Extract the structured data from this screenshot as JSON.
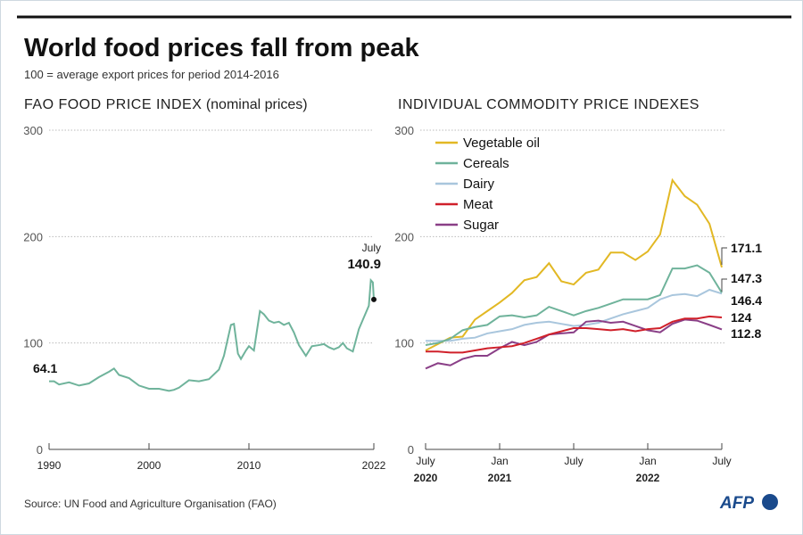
{
  "title": "World food prices fall from peak",
  "subtitle": "100 = average export prices for period 2014-2016",
  "source": "Source: UN Food and Agriculture Organisation (FAO)",
  "logo": "AFP",
  "chart_data": [
    {
      "type": "line",
      "title": "FAO FOOD PRICE INDEX",
      "title_note": "(nominal prices)",
      "ylim": [
        0,
        300
      ],
      "yticks": [
        "0",
        "100",
        "200",
        "300"
      ],
      "xlim": [
        1990,
        2022.5
      ],
      "xticks": [
        "1990",
        "2000",
        "2010",
        "2022"
      ],
      "grid": true,
      "color": "#6fb39b",
      "annotations": {
        "start_value": "64.1",
        "end_month": "July",
        "end_value": "140.9"
      },
      "x": [
        1990,
        1990.5,
        1991,
        1992,
        1993,
        1994,
        1995,
        1996,
        1996.5,
        1997,
        1998,
        1999,
        2000,
        2001,
        2002,
        2002.5,
        2003,
        2004,
        2005,
        2006,
        2007,
        2007.5,
        2008.2,
        2008.5,
        2008.9,
        2009.2,
        2009.7,
        2010,
        2010.5,
        2011.1,
        2011.5,
        2012,
        2012.5,
        2013,
        2013.5,
        2014,
        2014.5,
        2015,
        2015.7,
        2016.3,
        2017,
        2017.5,
        2018,
        2018.5,
        2019,
        2019.4,
        2019.8,
        2020.4,
        2021,
        2021.5,
        2022,
        2022.2,
        2022.4,
        2022.5
      ],
      "y": [
        64,
        64,
        61,
        63,
        60,
        62,
        68,
        73,
        76,
        70,
        67,
        60,
        57,
        57,
        55,
        56,
        58,
        65,
        64,
        66,
        75,
        88,
        117,
        118,
        90,
        85,
        93,
        97,
        93,
        130,
        127,
        121,
        119,
        120,
        117,
        119,
        110,
        98,
        88,
        97,
        98,
        99,
        96,
        94,
        96,
        100,
        95,
        92,
        113,
        124,
        135,
        159,
        157,
        140.9
      ]
    },
    {
      "type": "line",
      "title": "INDIVIDUAL COMMODITY PRICE INDEXES",
      "ylim": [
        0,
        300
      ],
      "yticks": [
        "0",
        "100",
        "200",
        "300"
      ],
      "xticks": [
        [
          "July",
          "2020"
        ],
        [
          "Jan",
          "2021"
        ],
        [
          "July",
          ""
        ],
        [
          "Jan",
          "2022"
        ],
        [
          "July",
          ""
        ]
      ],
      "x_range": [
        "2020-07",
        "2022-07"
      ],
      "grid": true,
      "legend": "top-left",
      "series": [
        {
          "name": "Vegetable oil",
          "color": "#e2b824",
          "end_label": "171.1",
          "values": [
            93,
            99,
            105,
            106,
            122,
            130,
            138,
            147,
            159,
            162,
            175,
            158,
            155,
            166,
            169,
            185,
            185,
            178,
            186,
            202,
            253,
            238,
            230,
            212,
            171.1
          ]
        },
        {
          "name": "Cereals",
          "color": "#6fb39b",
          "end_label": "147.3",
          "values": [
            98,
            100,
            104,
            112,
            115,
            117,
            125,
            126,
            124,
            126,
            134,
            130,
            126,
            130,
            133,
            137,
            141,
            141,
            141,
            145,
            170,
            170,
            173,
            166,
            147.3
          ]
        },
        {
          "name": "Dairy",
          "color": "#a9c6dd",
          "end_label": "146.4",
          "values": [
            102,
            102,
            102,
            104,
            105,
            109,
            111,
            113,
            117,
            119,
            120,
            118,
            116,
            117,
            119,
            123,
            127,
            130,
            133,
            141,
            145,
            146,
            144,
            150,
            146.4
          ]
        },
        {
          "name": "Meat",
          "color": "#d0202a",
          "end_label": "124",
          "values": [
            92,
            92,
            91,
            91,
            93,
            95,
            96,
            97,
            100,
            104,
            108,
            111,
            114,
            114,
            113,
            112,
            113,
            111,
            113,
            114,
            120,
            123,
            123,
            125,
            124
          ]
        },
        {
          "name": "Sugar",
          "color": "#8a3f87",
          "end_label": "112.8",
          "values": [
            76,
            81,
            79,
            85,
            88,
            88,
            95,
            101,
            98,
            101,
            108,
            109,
            110,
            120,
            121,
            119,
            120,
            116,
            112,
            110,
            118,
            122,
            121,
            117,
            112.8
          ]
        }
      ]
    }
  ]
}
